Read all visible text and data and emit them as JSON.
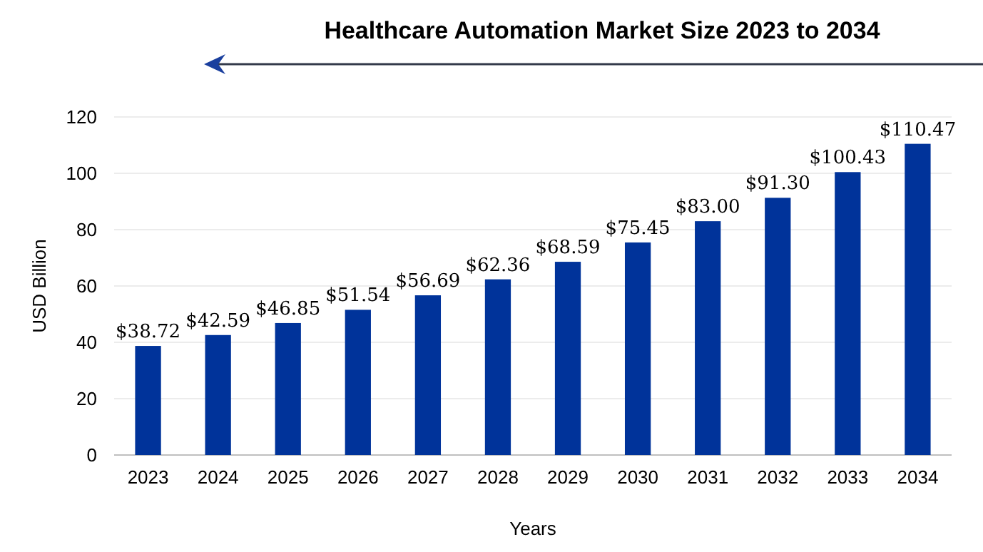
{
  "chart_data": {
    "type": "bar",
    "title": "Healthcare Automation Market Size 2023 to 2034",
    "xlabel": "Years",
    "ylabel": "USD Billion",
    "categories": [
      "2023",
      "2024",
      "2025",
      "2026",
      "2027",
      "2028",
      "2029",
      "2030",
      "2031",
      "2032",
      "2033",
      "2034"
    ],
    "values": [
      38.72,
      42.59,
      46.85,
      51.54,
      56.69,
      62.36,
      68.59,
      75.45,
      83.0,
      91.3,
      100.43,
      110.47
    ],
    "value_labels": [
      "$38.72",
      "$42.59",
      "$46.85",
      "$51.54",
      "$56.69",
      "$62.36",
      "$68.59",
      "$75.45",
      "$83.00",
      "$91.30",
      "$100.43",
      "$110.47"
    ],
    "color": "#00339a",
    "ylim": [
      0,
      120
    ],
    "yticks": [
      0,
      20,
      40,
      60,
      80,
      100,
      120
    ],
    "grid": "y"
  }
}
